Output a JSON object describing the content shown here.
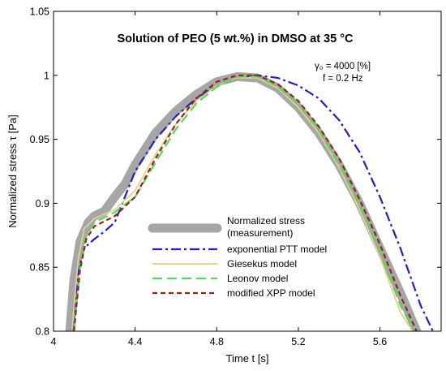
{
  "chart_data": {
    "type": "line",
    "title": "Solution of PEO (5 wt.%) in DMSO at 35 °C",
    "xlabel": "Time t [s]",
    "ylabel": "Normalized stress τ [Pa]",
    "xlim": [
      4.0,
      5.9
    ],
    "ylim": [
      0.8,
      1.05
    ],
    "xticks": [
      "4",
      "4.4",
      "4.8",
      "5.2",
      "5.6"
    ],
    "yticks": [
      "0.8",
      "0.85",
      "0.9",
      "0.95",
      "1",
      "1.05"
    ],
    "grid": false,
    "legend_position": "bottom-center",
    "annotations": [
      "γ₀ = 4000 [%]",
      "f = 0.2 Hz"
    ],
    "series": [
      {
        "name": "Normalized stress (measurement)",
        "color": "#a6a6a6",
        "style": "thick-solid",
        "x": [
          4.08,
          4.1,
          4.13,
          4.17,
          4.2,
          4.25,
          4.3,
          4.35,
          4.4,
          4.5,
          4.6,
          4.7,
          4.8,
          4.9,
          5.0,
          5.1,
          5.2,
          5.3,
          5.4,
          5.5,
          5.6,
          5.7,
          5.78
        ],
        "y": [
          0.8,
          0.84,
          0.87,
          0.885,
          0.89,
          0.894,
          0.905,
          0.915,
          0.93,
          0.955,
          0.972,
          0.985,
          0.995,
          0.999,
          0.998,
          0.99,
          0.975,
          0.955,
          0.93,
          0.9,
          0.865,
          0.83,
          0.8
        ]
      },
      {
        "name": "exponential PTT model",
        "color": "#1f1fc8",
        "style": "dash-dot",
        "x": [
          4.09,
          4.12,
          4.15,
          4.2,
          4.25,
          4.3,
          4.4,
          4.5,
          4.6,
          4.7,
          4.8,
          4.9,
          5.0,
          5.1,
          5.2,
          5.3,
          5.4,
          5.5,
          5.6,
          5.7,
          5.8,
          5.86
        ],
        "y": [
          0.8,
          0.845,
          0.865,
          0.872,
          0.878,
          0.885,
          0.925,
          0.95,
          0.968,
          0.982,
          0.992,
          0.998,
          1.0,
          0.998,
          0.992,
          0.982,
          0.965,
          0.94,
          0.905,
          0.865,
          0.82,
          0.8
        ]
      },
      {
        "name": "Giesekus model",
        "color": "#e8cf8a",
        "style": "solid",
        "x": [
          4.09,
          4.12,
          4.15,
          4.2,
          4.3,
          4.4,
          4.5,
          4.6,
          4.7,
          4.8,
          4.9,
          5.0,
          5.1,
          5.2,
          5.3,
          5.4,
          5.5,
          5.6,
          5.7,
          5.76
        ],
        "y": [
          0.8,
          0.855,
          0.88,
          0.888,
          0.895,
          0.91,
          0.938,
          0.962,
          0.98,
          0.992,
          0.998,
          0.998,
          0.99,
          0.975,
          0.955,
          0.928,
          0.895,
          0.858,
          0.815,
          0.8
        ]
      },
      {
        "name": "Leonov model",
        "color": "#5bd65b",
        "style": "long-dash",
        "x": [
          4.1,
          4.13,
          4.16,
          4.2,
          4.3,
          4.4,
          4.5,
          4.6,
          4.7,
          4.8,
          4.9,
          5.0,
          5.1,
          5.2,
          5.3,
          5.4,
          5.5,
          5.6,
          5.7,
          5.77
        ],
        "y": [
          0.8,
          0.85,
          0.875,
          0.885,
          0.893,
          0.905,
          0.932,
          0.958,
          0.978,
          0.991,
          0.999,
          0.999,
          0.991,
          0.977,
          0.957,
          0.93,
          0.898,
          0.862,
          0.82,
          0.8
        ]
      },
      {
        "name": "modified XPP model",
        "color": "#8b2a10",
        "style": "short-dash",
        "x": [
          4.1,
          4.13,
          4.16,
          4.2,
          4.3,
          4.4,
          4.5,
          4.6,
          4.7,
          4.8,
          4.9,
          5.0,
          5.1,
          5.2,
          5.3,
          5.4,
          5.5,
          5.6,
          5.7,
          5.78
        ],
        "y": [
          0.8,
          0.848,
          0.872,
          0.882,
          0.89,
          0.905,
          0.935,
          0.962,
          0.982,
          0.995,
          1.0,
          1.0,
          0.993,
          0.98,
          0.96,
          0.935,
          0.903,
          0.868,
          0.828,
          0.8
        ]
      }
    ]
  }
}
